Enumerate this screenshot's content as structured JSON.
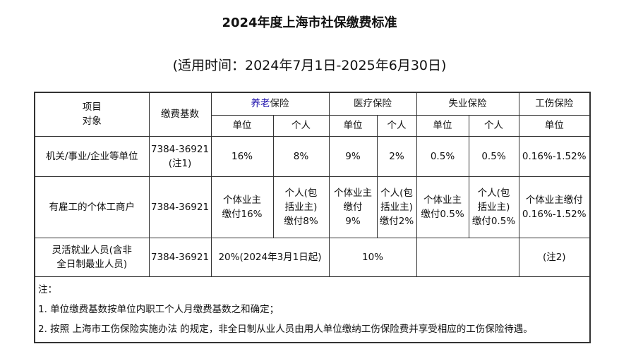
{
  "title": "2024年度上海市社保缴费标准",
  "subtitle": "(适用时间：2024年7月1日-2025年6月30日)",
  "header": {
    "item_line1": "项目",
    "item_line2": "对象",
    "base": "缴费基数",
    "pension_highlight": "养老",
    "pension_suffix": "保险",
    "medical": "医疗保险",
    "unemployment": "失业保险",
    "injury": "工伤保险",
    "unit": "单位",
    "personal": "个人"
  },
  "rows": [
    {
      "target": "机关/事业/企业等单位",
      "base_line1": "7384-36921",
      "base_line2": "(注1)",
      "pension_unit": "16%",
      "pension_personal": "8%",
      "medical_unit": "9%",
      "medical_personal": "2%",
      "unemp_unit": "0.5%",
      "unemp_personal": "0.5%",
      "injury_unit": "0.16%-1.52%"
    },
    {
      "target": "有雇工的个体工商户",
      "base": "7384-36921",
      "pension_unit_l1": "个体业主",
      "pension_unit_l2": "缴付16%",
      "pension_personal_l1": "个人(包",
      "pension_personal_l2": "括业主)",
      "pension_personal_l3": "缴付8%",
      "medical_unit_l1": "个体业主",
      "medical_unit_l2": "缴付",
      "medical_unit_l3": "9%",
      "medical_personal_l1": "个人(包",
      "medical_personal_l2": "括业主)",
      "medical_personal_l3": "缴付2%",
      "unemp_unit_l1": "个体业主",
      "unemp_unit_l2": "缴付0.5%",
      "unemp_personal_l1": "个人(包",
      "unemp_personal_l2": "括业主)",
      "unemp_personal_l3": "缴付0.5%",
      "injury_l1": "个体业主缴付",
      "injury_l2": "0.16%-1.52%"
    },
    {
      "target_l1": "灵活就业人员(含非",
      "target_l2": "全日制最业人员)",
      "base": "7384-36921",
      "pension": "20%(2024年3月1日起)",
      "medical": "10%",
      "unemployment": "",
      "injury": "(注2)"
    }
  ],
  "notes": {
    "heading": "注：",
    "note1": "1. 单位缴费基数按单位内职工个人月缴费基数之和确定；",
    "note2": "2. 按照 上海市工伤保险实施办法 的规定，非全日制从业人员由用人单位缴纳工伤保险费并享受相应的工伤保险待遇。"
  }
}
